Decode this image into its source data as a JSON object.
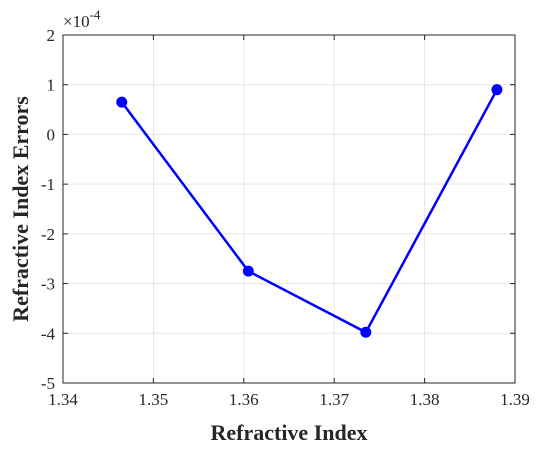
{
  "chart_data": {
    "type": "line",
    "title": "",
    "xlabel": "Refractive Index",
    "ylabel": "Refractive Index Errors",
    "y_multiplier": {
      "base": "×10",
      "exponent": "-4"
    },
    "xlim": [
      1.34,
      1.39
    ],
    "ylim": [
      -5,
      2
    ],
    "xticks": [
      "1.34",
      "1.35",
      "1.36",
      "1.37",
      "1.38",
      "1.39"
    ],
    "yticks": [
      "2",
      "1",
      "0",
      "-1",
      "-2",
      "-3",
      "-4",
      "-5"
    ],
    "grid": true,
    "series": [
      {
        "color": "#0000ff",
        "marker": "circle",
        "x": [
          1.3465,
          1.3605,
          1.3735,
          1.388
        ],
        "y": [
          0.65,
          -2.75,
          -3.98,
          0.9
        ]
      }
    ]
  }
}
